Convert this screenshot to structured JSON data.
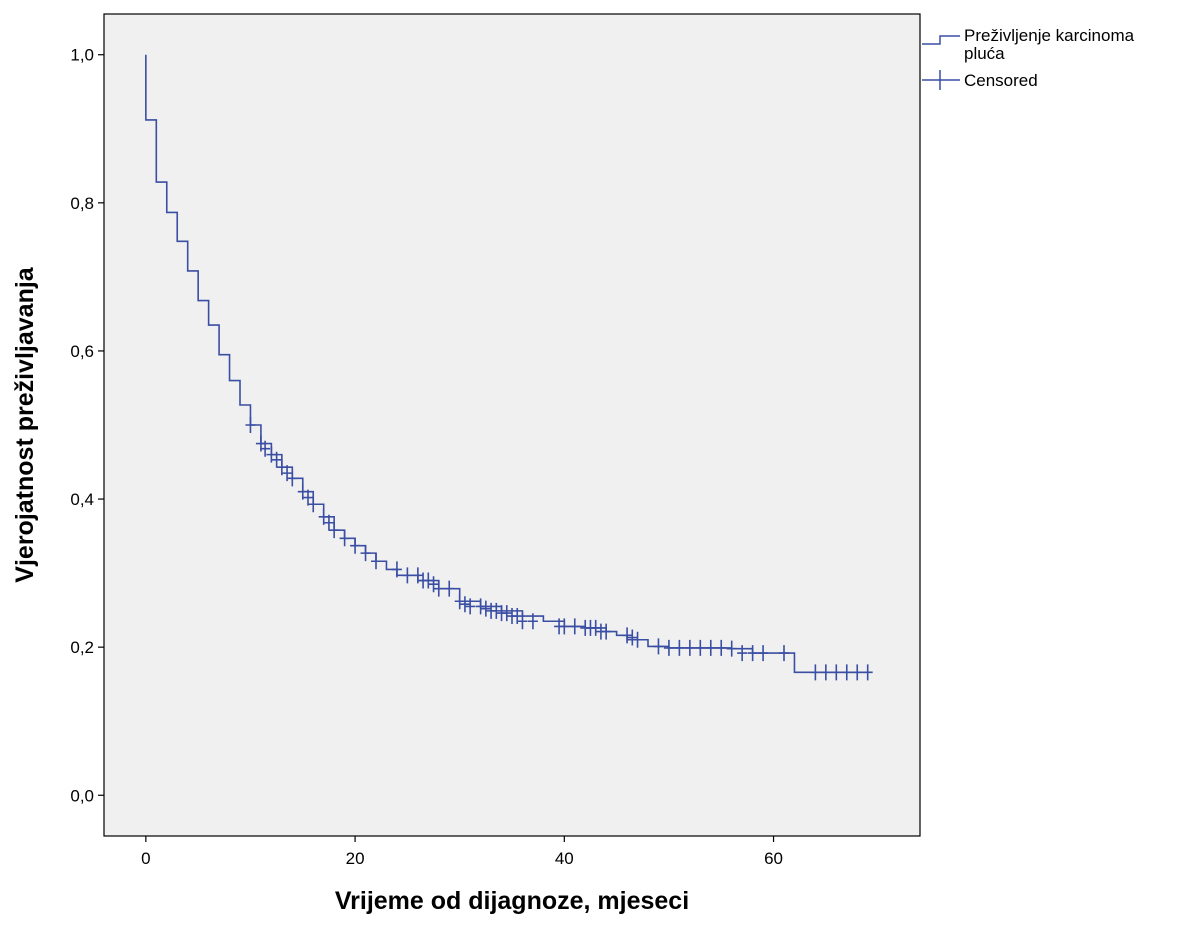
{
  "chart_data": {
    "type": "line",
    "title": "",
    "xlabel": "Vrijeme od dijagnoze, mjeseci",
    "ylabel": "Vjerojatnost preživljavanja",
    "xlim": [
      -4,
      74
    ],
    "ylim": [
      -0.055,
      1.055
    ],
    "x_ticks": [
      0,
      20,
      40,
      60
    ],
    "x_tick_labels": [
      "0",
      "20",
      "40",
      "60"
    ],
    "y_ticks": [
      0.0,
      0.2,
      0.4,
      0.6,
      0.8,
      1.0
    ],
    "y_tick_labels": [
      "0,0",
      "0,2",
      "0,4",
      "0,6",
      "0,8",
      "1,0"
    ],
    "grid": false,
    "legend_position": "outside-top-right",
    "colors": {
      "series": "#3a4ea3",
      "plot_background": "#f0f0f0",
      "frame": "#000000"
    },
    "series": [
      {
        "name": "Preživljenje karcinoma pluća",
        "step": true,
        "x": [
          0,
          0,
          1,
          2,
          3,
          4,
          5,
          6,
          7,
          8,
          9,
          10,
          11,
          12,
          13,
          14,
          15,
          16,
          17,
          18,
          19,
          20,
          21,
          22,
          23,
          24,
          26,
          28,
          30,
          32,
          34,
          36,
          38,
          40,
          42,
          44,
          45,
          46,
          48,
          50,
          52,
          54,
          56,
          58,
          62,
          69
        ],
        "y": [
          1.0,
          0.912,
          0.828,
          0.787,
          0.748,
          0.708,
          0.668,
          0.635,
          0.595,
          0.56,
          0.527,
          0.5,
          0.475,
          0.46,
          0.443,
          0.428,
          0.41,
          0.393,
          0.376,
          0.358,
          0.347,
          0.337,
          0.327,
          0.316,
          0.305,
          0.297,
          0.29,
          0.279,
          0.262,
          0.255,
          0.249,
          0.242,
          0.235,
          0.228,
          0.226,
          0.221,
          0.216,
          0.21,
          0.201,
          0.199,
          0.199,
          0.199,
          0.198,
          0.192,
          0.166,
          0.166
        ]
      },
      {
        "name": "Censored",
        "marker": "plus",
        "x": [
          10,
          11,
          11.4,
          12,
          12.5,
          13,
          13.5,
          14,
          15,
          15.5,
          16,
          17,
          17.5,
          18,
          19,
          20,
          21,
          22,
          24,
          25,
          26,
          26.5,
          27,
          27.5,
          28,
          29,
          30,
          30.5,
          31,
          32,
          32.5,
          33,
          33.5,
          34,
          34.5,
          35,
          35.5,
          36,
          37,
          39.5,
          40,
          41,
          42,
          42.5,
          43,
          43.5,
          44,
          46,
          46.5,
          47,
          49,
          50,
          51,
          52,
          53,
          54,
          55,
          56,
          57,
          58,
          59,
          61,
          64,
          65,
          66,
          67,
          68,
          69
        ],
        "y": [
          0.5,
          0.475,
          0.468,
          0.46,
          0.453,
          0.443,
          0.435,
          0.428,
          0.41,
          0.402,
          0.393,
          0.376,
          0.368,
          0.358,
          0.347,
          0.337,
          0.327,
          0.316,
          0.305,
          0.297,
          0.297,
          0.29,
          0.29,
          0.285,
          0.279,
          0.279,
          0.262,
          0.258,
          0.255,
          0.255,
          0.252,
          0.249,
          0.249,
          0.246,
          0.246,
          0.242,
          0.242,
          0.235,
          0.235,
          0.228,
          0.228,
          0.228,
          0.226,
          0.226,
          0.226,
          0.221,
          0.221,
          0.216,
          0.213,
          0.21,
          0.201,
          0.199,
          0.199,
          0.199,
          0.199,
          0.199,
          0.199,
          0.198,
          0.192,
          0.192,
          0.192,
          0.192,
          0.166,
          0.166,
          0.166,
          0.166,
          0.166,
          0.166
        ]
      }
    ]
  }
}
